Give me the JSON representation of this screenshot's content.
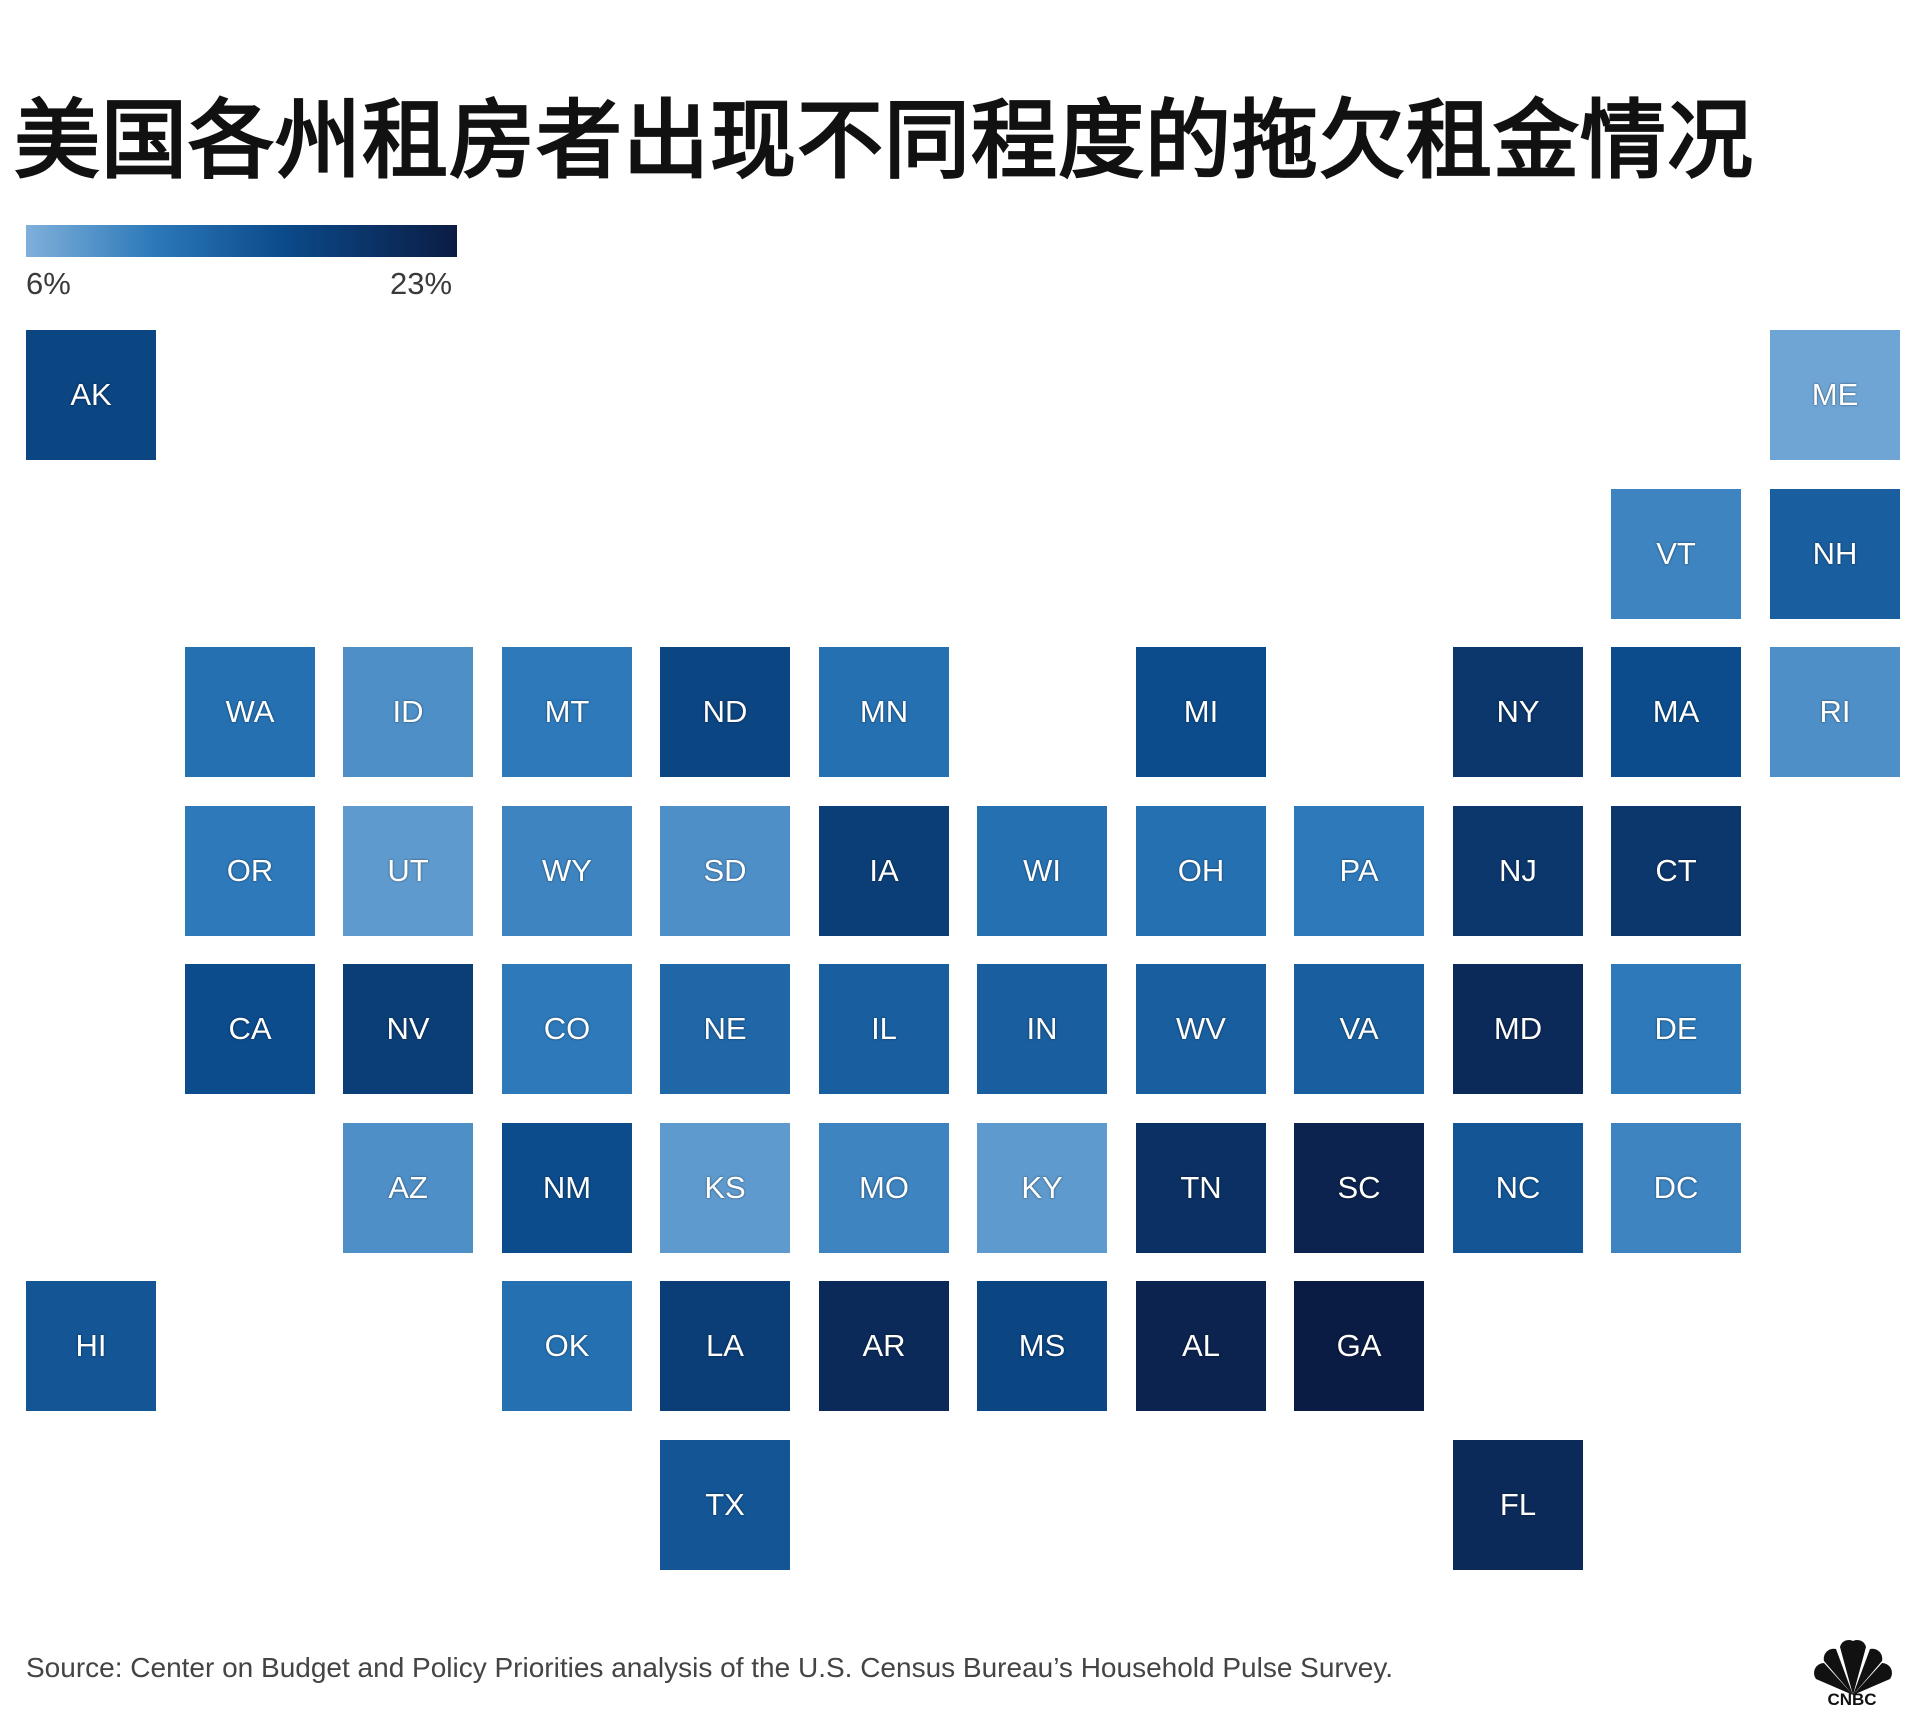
{
  "title": "美国各州租房者出现不同程度的拖欠租金情况",
  "legend": {
    "min_label": "6%",
    "max_label": "23%",
    "min": 6,
    "max": 23
  },
  "source": "Source: Center on Budget and Policy Priorities analysis of the U.S. Census Bureau’s Household Pulse Survey.",
  "logo_text": "CNBC",
  "chart_data": {
    "type": "heatmap",
    "title": "美国各州租房者出现不同程度的拖欠租金情况",
    "color_scale": {
      "min": 6,
      "max": 23,
      "min_color": "#7fb0da",
      "max_color": "#0b1c44"
    },
    "states": [
      {
        "abbr": "AK",
        "row": 0,
        "col": 0,
        "value": 17
      },
      {
        "abbr": "ME",
        "row": 0,
        "col": 11,
        "value": 7
      },
      {
        "abbr": "VT",
        "row": 1,
        "col": 10,
        "value": 10
      },
      {
        "abbr": "NH",
        "row": 1,
        "col": 11,
        "value": 14
      },
      {
        "abbr": "WA",
        "row": 2,
        "col": 1,
        "value": 12
      },
      {
        "abbr": "ID",
        "row": 2,
        "col": 2,
        "value": 9
      },
      {
        "abbr": "MT",
        "row": 2,
        "col": 3,
        "value": 11
      },
      {
        "abbr": "ND",
        "row": 2,
        "col": 4,
        "value": 17
      },
      {
        "abbr": "MN",
        "row": 2,
        "col": 5,
        "value": 12
      },
      {
        "abbr": "MI",
        "row": 2,
        "col": 7,
        "value": 16
      },
      {
        "abbr": "NY",
        "row": 2,
        "col": 9,
        "value": 19
      },
      {
        "abbr": "MA",
        "row": 2,
        "col": 10,
        "value": 16
      },
      {
        "abbr": "RI",
        "row": 2,
        "col": 11,
        "value": 9
      },
      {
        "abbr": "OR",
        "row": 3,
        "col": 1,
        "value": 11
      },
      {
        "abbr": "UT",
        "row": 3,
        "col": 2,
        "value": 8
      },
      {
        "abbr": "WY",
        "row": 3,
        "col": 3,
        "value": 10
      },
      {
        "abbr": "SD",
        "row": 3,
        "col": 4,
        "value": 9
      },
      {
        "abbr": "IA",
        "row": 3,
        "col": 5,
        "value": 18
      },
      {
        "abbr": "WI",
        "row": 3,
        "col": 6,
        "value": 12
      },
      {
        "abbr": "OH",
        "row": 3,
        "col": 7,
        "value": 12
      },
      {
        "abbr": "PA",
        "row": 3,
        "col": 8,
        "value": 11
      },
      {
        "abbr": "NJ",
        "row": 3,
        "col": 9,
        "value": 19
      },
      {
        "abbr": "CT",
        "row": 3,
        "col": 10,
        "value": 19
      },
      {
        "abbr": "CA",
        "row": 4,
        "col": 1,
        "value": 16
      },
      {
        "abbr": "NV",
        "row": 4,
        "col": 2,
        "value": 18
      },
      {
        "abbr": "CO",
        "row": 4,
        "col": 3,
        "value": 11
      },
      {
        "abbr": "NE",
        "row": 4,
        "col": 4,
        "value": 13
      },
      {
        "abbr": "IL",
        "row": 4,
        "col": 5,
        "value": 14
      },
      {
        "abbr": "IN",
        "row": 4,
        "col": 6,
        "value": 14
      },
      {
        "abbr": "WV",
        "row": 4,
        "col": 7,
        "value": 14
      },
      {
        "abbr": "VA",
        "row": 4,
        "col": 8,
        "value": 14
      },
      {
        "abbr": "MD",
        "row": 4,
        "col": 9,
        "value": 21
      },
      {
        "abbr": "DE",
        "row": 4,
        "col": 10,
        "value": 11
      },
      {
        "abbr": "AZ",
        "row": 5,
        "col": 2,
        "value": 9
      },
      {
        "abbr": "NM",
        "row": 5,
        "col": 3,
        "value": 16
      },
      {
        "abbr": "KS",
        "row": 5,
        "col": 4,
        "value": 8
      },
      {
        "abbr": "MO",
        "row": 5,
        "col": 5,
        "value": 10
      },
      {
        "abbr": "KY",
        "row": 5,
        "col": 6,
        "value": 8
      },
      {
        "abbr": "TN",
        "row": 5,
        "col": 7,
        "value": 20
      },
      {
        "abbr": "SC",
        "row": 5,
        "col": 8,
        "value": 22
      },
      {
        "abbr": "NC",
        "row": 5,
        "col": 9,
        "value": 15
      },
      {
        "abbr": "DC",
        "row": 5,
        "col": 10,
        "value": 10
      },
      {
        "abbr": "HI",
        "row": 6,
        "col": 0,
        "value": 15
      },
      {
        "abbr": "OK",
        "row": 6,
        "col": 3,
        "value": 12
      },
      {
        "abbr": "LA",
        "row": 6,
        "col": 4,
        "value": 18
      },
      {
        "abbr": "AR",
        "row": 6,
        "col": 5,
        "value": 21
      },
      {
        "abbr": "MS",
        "row": 6,
        "col": 6,
        "value": 17
      },
      {
        "abbr": "AL",
        "row": 6,
        "col": 7,
        "value": 22
      },
      {
        "abbr": "GA",
        "row": 6,
        "col": 8,
        "value": 23
      },
      {
        "abbr": "TX",
        "row": 7,
        "col": 4,
        "value": 15
      },
      {
        "abbr": "FL",
        "row": 7,
        "col": 9,
        "value": 21
      }
    ]
  }
}
